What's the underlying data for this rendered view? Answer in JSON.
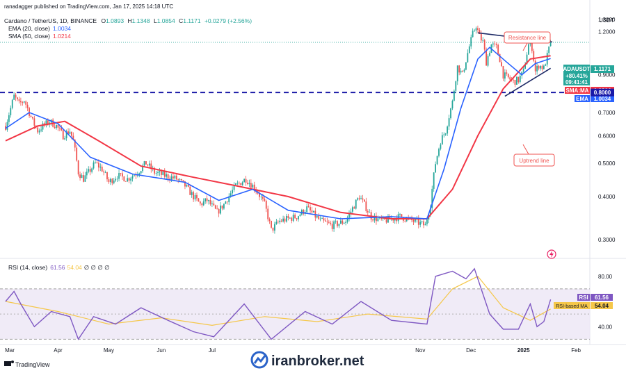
{
  "header": {
    "publish_line": "ranadagger published on TradingView.com, Jan 17, 2025 14:18 UTC",
    "symbol_line_prefix": "Cardano / TetherUS, 1D, BINANCE",
    "ohlc": {
      "O": "1.0893",
      "H": "1.1348",
      "L": "1.0854",
      "C": "1.1171",
      "change": "+0.0279 (+2.56%)"
    }
  },
  "indicators": {
    "ema_label": "EMA (20, close)",
    "ema_value": "1.0034",
    "sma_label": "SMA (50, close)",
    "sma_value": "1.0214",
    "rsi_label": "RSI (14, close)",
    "rsi_value": "61.56",
    "rsi_ma_value": "54.04",
    "rsi_extra": "∅ ∅ ∅ ∅"
  },
  "price_axis": {
    "currency": "USDT",
    "ticks": [
      "1.3000",
      "1.2000",
      "0.9000",
      "0.7000",
      "0.6000",
      "0.5000",
      "0.4000",
      "0.3000"
    ],
    "tick_values": [
      1.3,
      1.2,
      0.9,
      0.7,
      0.6,
      0.5,
      0.4,
      0.3
    ]
  },
  "badges": {
    "symbol": "ADAUSDT",
    "price": "1.1171",
    "pct": "+80.41%",
    "countdown": "09:41:41",
    "sma_label": "SMA:MA",
    "sma_value": "1.0214",
    "ema_label": "EMA",
    "ema_value": "1.0034",
    "level_value": "0.8000",
    "rsi_label": "RSI",
    "rsi_value": "61.56",
    "rsi_ma_label": "RSI-based MA",
    "rsi_ma_value": "54.04"
  },
  "rsi_axis": {
    "ticks": [
      "80.00",
      "40.00"
    ],
    "tick_values": [
      80,
      40
    ]
  },
  "x_axis": {
    "labels": [
      "Mar",
      "Apr",
      "May",
      "Jun",
      "Jul",
      "Nov",
      "Dec",
      "2025",
      "Feb"
    ]
  },
  "annotations": {
    "resistance": "Resistance line",
    "uptrend": "Uptrend line"
  },
  "footer": {
    "brand": "TradingView",
    "watermark": "iranbroker.net"
  },
  "colors": {
    "up": "#26a69a",
    "down": "#ef5350",
    "ema": "#2962ff",
    "sma": "#f23645",
    "rsi": "#7e57c2",
    "rsi_ma": "#f5c74a",
    "level": "#1a1aa8"
  },
  "chart_data": {
    "type": "candlestick",
    "title": "Cardano / TetherUS, 1D, BINANCE",
    "x_range": [
      "2024-03-01",
      "2025-02-10"
    ],
    "price_scale": "log",
    "price_range": [
      0.27,
      1.35
    ],
    "level_line": 0.8,
    "ohlc_last": {
      "open": 1.0893,
      "high": 1.1348,
      "low": 1.0854,
      "close": 1.1171
    },
    "close_path": [
      [
        "2024-03-01",
        0.64
      ],
      [
        "2024-03-04",
        0.72
      ],
      [
        "2024-03-06",
        0.78
      ],
      [
        "2024-03-09",
        0.74
      ],
      [
        "2024-03-12",
        0.76
      ],
      [
        "2024-03-14",
        0.72
      ],
      [
        "2024-03-17",
        0.66
      ],
      [
        "2024-03-20",
        0.62
      ],
      [
        "2024-03-23",
        0.64
      ],
      [
        "2024-03-27",
        0.66
      ],
      [
        "2024-03-31",
        0.64
      ],
      [
        "2024-04-04",
        0.6
      ],
      [
        "2024-04-08",
        0.62
      ],
      [
        "2024-04-10",
        0.58
      ],
      [
        "2024-04-13",
        0.47
      ],
      [
        "2024-04-16",
        0.45
      ],
      [
        "2024-04-19",
        0.47
      ],
      [
        "2024-04-23",
        0.5
      ],
      [
        "2024-04-27",
        0.48
      ],
      [
        "2024-05-01",
        0.44
      ],
      [
        "2024-05-06",
        0.46
      ],
      [
        "2024-05-12",
        0.45
      ],
      [
        "2024-05-18",
        0.47
      ],
      [
        "2024-05-23",
        0.5
      ],
      [
        "2024-05-28",
        0.47
      ],
      [
        "2024-06-03",
        0.46
      ],
      [
        "2024-06-10",
        0.45
      ],
      [
        "2024-06-15",
        0.43
      ],
      [
        "2024-06-20",
        0.4
      ],
      [
        "2024-06-24",
        0.38
      ],
      [
        "2024-06-28",
        0.39
      ],
      [
        "2024-07-04",
        0.36
      ],
      [
        "2024-07-08",
        0.38
      ],
      [
        "2024-07-15",
        0.43
      ],
      [
        "2024-07-21",
        0.45
      ],
      [
        "2024-07-27",
        0.42
      ],
      [
        "2024-08-01",
        0.38
      ],
      [
        "2024-08-05",
        0.32
      ],
      [
        "2024-08-10",
        0.34
      ],
      [
        "2024-08-20",
        0.35
      ],
      [
        "2024-08-26",
        0.37
      ],
      [
        "2024-09-03",
        0.34
      ],
      [
        "2024-09-10",
        0.33
      ],
      [
        "2024-09-18",
        0.34
      ],
      [
        "2024-09-26",
        0.4
      ],
      [
        "2024-10-03",
        0.35
      ],
      [
        "2024-10-10",
        0.34
      ],
      [
        "2024-10-20",
        0.35
      ],
      [
        "2024-10-28",
        0.34
      ],
      [
        "2024-11-04",
        0.33
      ],
      [
        "2024-11-07",
        0.38
      ],
      [
        "2024-11-10",
        0.5
      ],
      [
        "2024-11-13",
        0.58
      ],
      [
        "2024-11-16",
        0.62
      ],
      [
        "2024-11-20",
        0.75
      ],
      [
        "2024-11-23",
        0.95
      ],
      [
        "2024-11-26",
        0.9
      ],
      [
        "2024-11-29",
        1.04
      ],
      [
        "2024-12-02",
        1.18
      ],
      [
        "2024-12-04",
        1.25
      ],
      [
        "2024-12-06",
        1.16
      ],
      [
        "2024-12-08",
        1.12
      ],
      [
        "2024-12-10",
        0.98
      ],
      [
        "2024-12-13",
        1.1
      ],
      [
        "2024-12-16",
        1.08
      ],
      [
        "2024-12-18",
        1.0
      ],
      [
        "2024-12-20",
        0.9
      ],
      [
        "2024-12-23",
        0.88
      ],
      [
        "2024-12-26",
        0.86
      ],
      [
        "2024-12-29",
        0.87
      ],
      [
        "2025-01-01",
        0.92
      ],
      [
        "2025-01-04",
        1.1
      ],
      [
        "2025-01-06",
        1.08
      ],
      [
        "2025-01-08",
        0.92
      ],
      [
        "2025-01-10",
        0.96
      ],
      [
        "2025-01-13",
        0.94
      ],
      [
        "2025-01-15",
        1.02
      ],
      [
        "2025-01-17",
        1.1171
      ]
    ],
    "ema_path": [
      [
        "2024-03-01",
        0.63
      ],
      [
        "2024-03-15",
        0.7
      ],
      [
        "2024-04-01",
        0.65
      ],
      [
        "2024-04-20",
        0.52
      ],
      [
        "2024-05-15",
        0.465
      ],
      [
        "2024-06-15",
        0.44
      ],
      [
        "2024-07-05",
        0.39
      ],
      [
        "2024-07-25",
        0.42
      ],
      [
        "2024-08-15",
        0.365
      ],
      [
        "2024-09-15",
        0.345
      ],
      [
        "2024-10-15",
        0.35
      ],
      [
        "2024-11-05",
        0.345
      ],
      [
        "2024-11-15",
        0.48
      ],
      [
        "2024-11-25",
        0.72
      ],
      [
        "2024-12-05",
        1.0
      ],
      [
        "2024-12-12",
        1.08
      ],
      [
        "2024-12-22",
        0.98
      ],
      [
        "2024-12-31",
        0.9
      ],
      [
        "2025-01-08",
        0.97
      ],
      [
        "2025-01-17",
        1.0034
      ]
    ],
    "sma_path": [
      [
        "2024-03-01",
        0.58
      ],
      [
        "2024-03-20",
        0.64
      ],
      [
        "2024-04-05",
        0.66
      ],
      [
        "2024-04-25",
        0.58
      ],
      [
        "2024-05-20",
        0.49
      ],
      [
        "2024-06-20",
        0.455
      ],
      [
        "2024-07-15",
        0.43
      ],
      [
        "2024-08-15",
        0.4
      ],
      [
        "2024-09-15",
        0.36
      ],
      [
        "2024-10-15",
        0.345
      ],
      [
        "2024-11-05",
        0.345
      ],
      [
        "2024-11-20",
        0.42
      ],
      [
        "2024-12-05",
        0.6
      ],
      [
        "2024-12-20",
        0.82
      ],
      [
        "2025-01-05",
        1.0
      ],
      [
        "2025-01-17",
        1.0214
      ]
    ],
    "rsi_path": [
      [
        "2024-03-01",
        60
      ],
      [
        "2024-03-06",
        68
      ],
      [
        "2024-03-10",
        58
      ],
      [
        "2024-03-18",
        40
      ],
      [
        "2024-03-28",
        52
      ],
      [
        "2024-04-08",
        48
      ],
      [
        "2024-04-13",
        30
      ],
      [
        "2024-04-22",
        48
      ],
      [
        "2024-05-05",
        42
      ],
      [
        "2024-05-20",
        55
      ],
      [
        "2024-06-05",
        45
      ],
      [
        "2024-06-20",
        36
      ],
      [
        "2024-07-02",
        32
      ],
      [
        "2024-07-20",
        58
      ],
      [
        "2024-08-05",
        30
      ],
      [
        "2024-08-25",
        52
      ],
      [
        "2024-09-10",
        42
      ],
      [
        "2024-09-27",
        60
      ],
      [
        "2024-10-15",
        45
      ],
      [
        "2024-11-05",
        42
      ],
      [
        "2024-11-10",
        80
      ],
      [
        "2024-11-20",
        84
      ],
      [
        "2024-11-28",
        78
      ],
      [
        "2024-12-03",
        86
      ],
      [
        "2024-12-12",
        50
      ],
      [
        "2024-12-20",
        38
      ],
      [
        "2024-12-29",
        38
      ],
      [
        "2025-01-05",
        58
      ],
      [
        "2025-01-09",
        40
      ],
      [
        "2025-01-13",
        44
      ],
      [
        "2025-01-17",
        61.56
      ]
    ],
    "rsi_ma_path": [
      [
        "2024-03-01",
        60
      ],
      [
        "2024-04-01",
        52
      ],
      [
        "2024-05-01",
        42
      ],
      [
        "2024-06-01",
        47
      ],
      [
        "2024-07-01",
        41
      ],
      [
        "2024-08-01",
        48
      ],
      [
        "2024-09-01",
        44
      ],
      [
        "2024-10-01",
        50
      ],
      [
        "2024-11-05",
        46
      ],
      [
        "2024-11-20",
        70
      ],
      [
        "2024-12-05",
        80
      ],
      [
        "2024-12-20",
        55
      ],
      [
        "2025-01-05",
        45
      ],
      [
        "2025-01-17",
        54.04
      ]
    ],
    "rsi_range": [
      28,
      92
    ],
    "rsi_levels": [
      70,
      50,
      30
    ],
    "trendlines": [
      {
        "name": "Resistance line",
        "from": [
          "2024-12-05",
          1.19
        ],
        "to": [
          "2025-01-18",
          1.12
        ]
      },
      {
        "name": "Uptrend line",
        "from": [
          "2024-12-21",
          0.78
        ],
        "to": [
          "2025-01-17",
          0.94
        ]
      }
    ]
  }
}
